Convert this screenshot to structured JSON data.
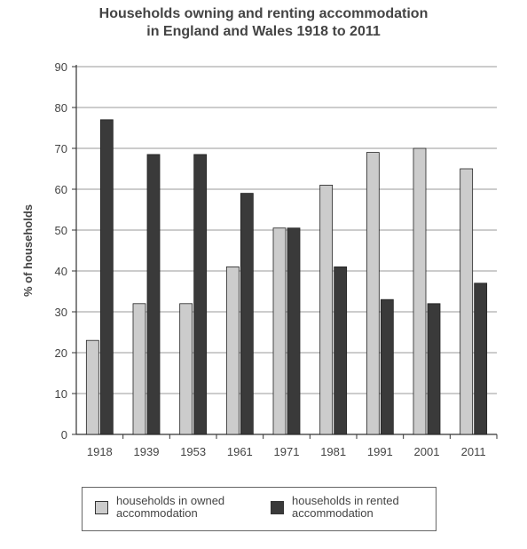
{
  "chart_data": {
    "type": "bar",
    "title_lines": [
      "Households owning and renting accommodation",
      "in England and Wales 1918 to 2011"
    ],
    "xlabel": "",
    "ylabel": "% of households",
    "categories": [
      "1918",
      "1939",
      "1953",
      "1961",
      "1971",
      "1981",
      "1991",
      "2001",
      "2011"
    ],
    "series": [
      {
        "name": "households in owned accommodation",
        "values": [
          23,
          32,
          32,
          41,
          50.5,
          61,
          69,
          70,
          65
        ],
        "color": "#cccccc"
      },
      {
        "name": "households in rented accommodation",
        "values": [
          77,
          68.5,
          68.5,
          59,
          50.5,
          41,
          33,
          32,
          37
        ],
        "color": "#3a3a3a"
      }
    ],
    "ylim": [
      0,
      90
    ],
    "yticks": [
      "0",
      "10",
      "20",
      "30",
      "40",
      "50",
      "60",
      "70",
      "80",
      "90"
    ],
    "grid": true,
    "legend_position": "bottom"
  }
}
